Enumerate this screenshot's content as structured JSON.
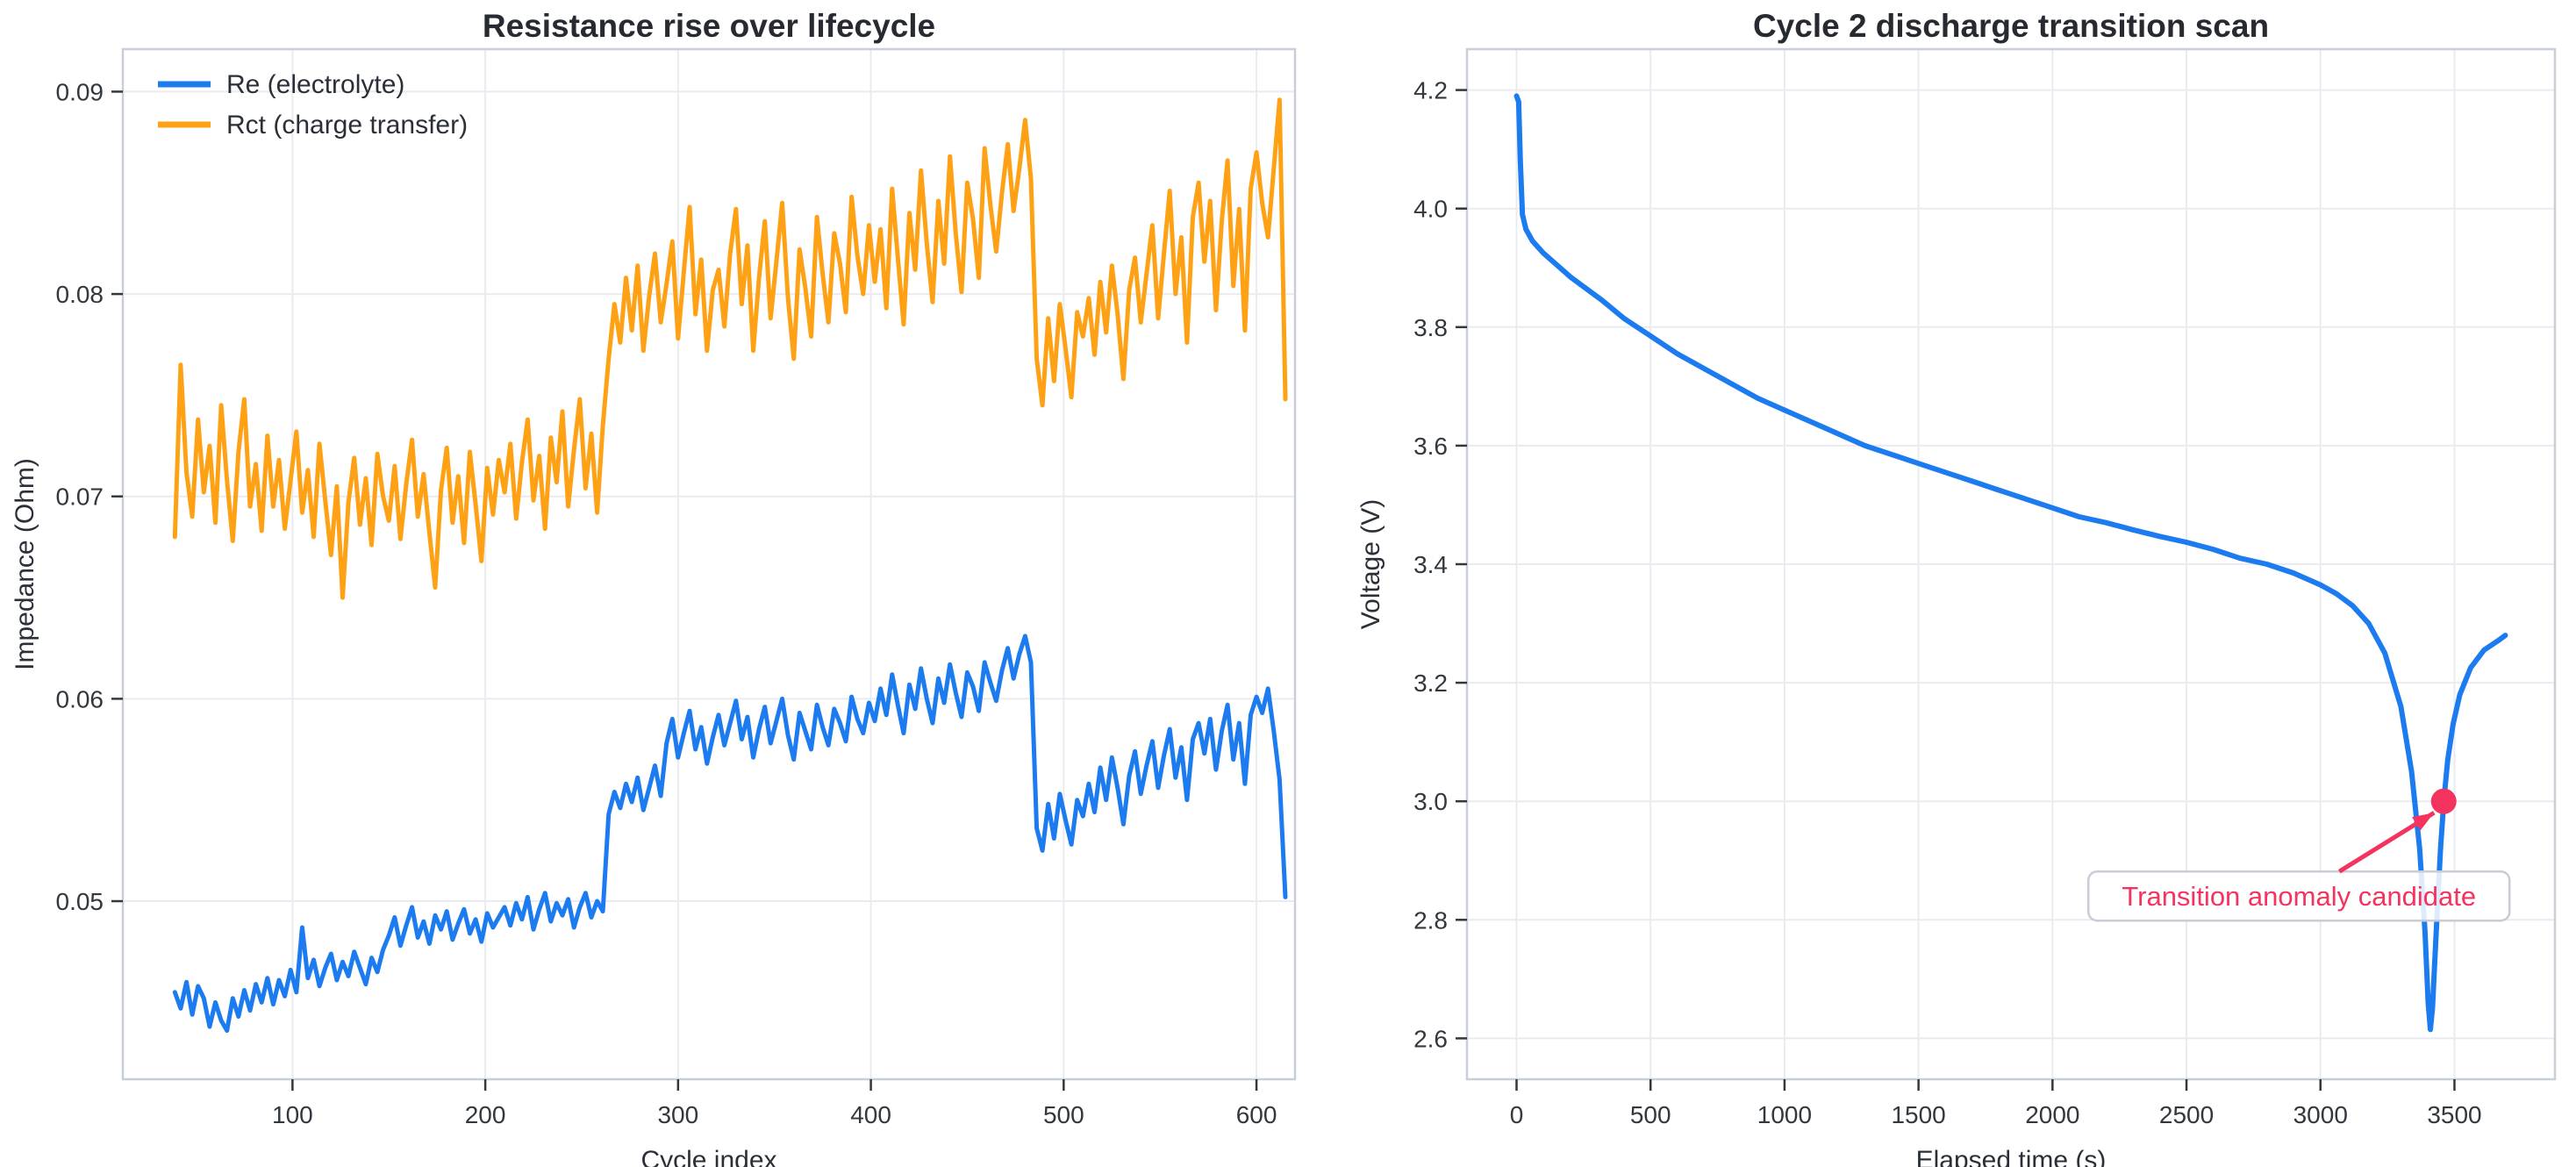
{
  "figure": {
    "background": "#ffffff",
    "title_color": "#272b31",
    "tick_color": "#33383f",
    "grid_color": "#e9ebf0",
    "spine_color": "#c9cfd8"
  },
  "chart_data": [
    {
      "id": "impedance",
      "type": "line",
      "title": "Resistance rise over lifecycle",
      "xlabel": "Cycle index",
      "ylabel": "Impedance (Ohm)",
      "xlim": [
        12,
        620
      ],
      "ylim": [
        0.0412,
        0.0921
      ],
      "xticks": [
        100,
        200,
        300,
        400,
        500,
        600
      ],
      "xtick_labels": [
        "100",
        "200",
        "300",
        "400",
        "500",
        "600"
      ],
      "yticks": [
        0.05,
        0.06,
        0.07,
        0.08,
        0.09
      ],
      "ytick_labels": [
        "0.05",
        "0.06",
        "0.07",
        "0.08",
        "0.09"
      ],
      "grid": true,
      "legend": {
        "position": "upper-left"
      },
      "x": {
        "start": 39,
        "step": 3,
        "count": 193
      },
      "series": [
        {
          "name": "Re (electrolyte)",
          "color": "#1b7bef",
          "width": 5,
          "values": [
            0.0455,
            0.0447,
            0.046,
            0.0444,
            0.0458,
            0.0452,
            0.0438,
            0.045,
            0.0441,
            0.0436,
            0.0452,
            0.0443,
            0.0456,
            0.0446,
            0.0459,
            0.045,
            0.0462,
            0.0449,
            0.0461,
            0.0453,
            0.0466,
            0.0455,
            0.0487,
            0.0462,
            0.0471,
            0.0458,
            0.0467,
            0.0474,
            0.0461,
            0.047,
            0.0463,
            0.0475,
            0.0467,
            0.0459,
            0.0472,
            0.0465,
            0.0476,
            0.0483,
            0.0492,
            0.0478,
            0.0488,
            0.0497,
            0.0482,
            0.049,
            0.0479,
            0.0493,
            0.0486,
            0.0495,
            0.0481,
            0.0489,
            0.0496,
            0.0484,
            0.0491,
            0.048,
            0.0494,
            0.0487,
            0.0492,
            0.0497,
            0.0488,
            0.0499,
            0.0491,
            0.0502,
            0.0486,
            0.0496,
            0.0504,
            0.049,
            0.0499,
            0.0493,
            0.0501,
            0.0487,
            0.0497,
            0.0504,
            0.0492,
            0.05,
            0.0495,
            0.0543,
            0.0554,
            0.0546,
            0.0558,
            0.0549,
            0.0561,
            0.0545,
            0.0556,
            0.0567,
            0.0552,
            0.0578,
            0.059,
            0.0571,
            0.0583,
            0.0594,
            0.0575,
            0.0586,
            0.0568,
            0.0581,
            0.0592,
            0.0577,
            0.0588,
            0.0599,
            0.058,
            0.0591,
            0.0571,
            0.0585,
            0.0596,
            0.0578,
            0.0589,
            0.06,
            0.0582,
            0.057,
            0.0593,
            0.0584,
            0.0575,
            0.0597,
            0.0586,
            0.0577,
            0.0595,
            0.0588,
            0.0579,
            0.0601,
            0.059,
            0.0583,
            0.0598,
            0.0589,
            0.0605,
            0.0592,
            0.0612,
            0.0597,
            0.0583,
            0.0607,
            0.0595,
            0.0615,
            0.06,
            0.0588,
            0.061,
            0.0598,
            0.0617,
            0.0603,
            0.0591,
            0.0613,
            0.0606,
            0.0594,
            0.0618,
            0.0608,
            0.0599,
            0.0614,
            0.0625,
            0.061,
            0.0622,
            0.0631,
            0.0618,
            0.0536,
            0.0525,
            0.0548,
            0.0531,
            0.0553,
            0.054,
            0.0528,
            0.055,
            0.0542,
            0.0558,
            0.0544,
            0.0566,
            0.055,
            0.0571,
            0.0556,
            0.0538,
            0.0562,
            0.0574,
            0.0553,
            0.0567,
            0.0579,
            0.0556,
            0.0572,
            0.0585,
            0.0561,
            0.0576,
            0.055,
            0.058,
            0.0588,
            0.0573,
            0.059,
            0.0565,
            0.0584,
            0.0597,
            0.057,
            0.0588,
            0.0558,
            0.0592,
            0.0601,
            0.0593,
            0.0605,
            0.0584,
            0.056,
            0.0502
          ]
        },
        {
          "name": "Rct (charge transfer)",
          "color": "#ffa115",
          "width": 5,
          "values": [
            0.068,
            0.0765,
            0.0712,
            0.069,
            0.0738,
            0.0702,
            0.0725,
            0.0687,
            0.0745,
            0.0708,
            0.0678,
            0.0722,
            0.0748,
            0.0695,
            0.0716,
            0.0683,
            0.073,
            0.0695,
            0.0718,
            0.0684,
            0.0708,
            0.0732,
            0.0692,
            0.0713,
            0.068,
            0.0726,
            0.0698,
            0.0671,
            0.0705,
            0.065,
            0.0697,
            0.0719,
            0.0686,
            0.0709,
            0.0676,
            0.0721,
            0.07,
            0.0688,
            0.0715,
            0.0679,
            0.0706,
            0.0728,
            0.069,
            0.0711,
            0.0682,
            0.0655,
            0.0703,
            0.0724,
            0.0687,
            0.071,
            0.0677,
            0.0722,
            0.0696,
            0.0668,
            0.0714,
            0.0691,
            0.0718,
            0.0702,
            0.0726,
            0.0689,
            0.0717,
            0.0738,
            0.0698,
            0.072,
            0.0684,
            0.0729,
            0.0707,
            0.0742,
            0.0695,
            0.0723,
            0.0748,
            0.0704,
            0.0731,
            0.0692,
            0.0735,
            0.0768,
            0.0795,
            0.0776,
            0.0808,
            0.0782,
            0.0814,
            0.0772,
            0.0799,
            0.082,
            0.0786,
            0.0805,
            0.0826,
            0.0778,
            0.0811,
            0.0843,
            0.079,
            0.0817,
            0.0772,
            0.0802,
            0.0812,
            0.0784,
            0.082,
            0.0842,
            0.0795,
            0.0824,
            0.0772,
            0.0808,
            0.0836,
            0.0788,
            0.0816,
            0.0845,
            0.0798,
            0.0768,
            0.0822,
            0.0803,
            0.0779,
            0.0838,
            0.081,
            0.0786,
            0.083,
            0.0815,
            0.0791,
            0.0848,
            0.0819,
            0.08,
            0.0834,
            0.0806,
            0.0832,
            0.0793,
            0.0852,
            0.0818,
            0.0785,
            0.084,
            0.0812,
            0.0861,
            0.0825,
            0.0796,
            0.0846,
            0.0815,
            0.0868,
            0.083,
            0.0801,
            0.0855,
            0.0837,
            0.0808,
            0.0872,
            0.0844,
            0.0821,
            0.085,
            0.0874,
            0.0841,
            0.0862,
            0.0886,
            0.0857,
            0.0768,
            0.0745,
            0.0788,
            0.0757,
            0.0795,
            0.0773,
            0.0749,
            0.0791,
            0.0779,
            0.0798,
            0.077,
            0.0806,
            0.0781,
            0.0814,
            0.079,
            0.0758,
            0.0802,
            0.0818,
            0.0786,
            0.081,
            0.0834,
            0.0788,
            0.082,
            0.0851,
            0.08,
            0.0828,
            0.0776,
            0.0838,
            0.0855,
            0.0816,
            0.0846,
            0.0792,
            0.0836,
            0.0866,
            0.0804,
            0.0842,
            0.0782,
            0.0852,
            0.087,
            0.0845,
            0.0828,
            0.0862,
            0.0896,
            0.0748
          ]
        }
      ]
    },
    {
      "id": "discharge",
      "type": "line",
      "title": "Cycle 2 discharge transition scan",
      "xlabel": "Elapsed time (s)",
      "ylabel": "Voltage (V)",
      "xlim": [
        -185,
        3875
      ],
      "ylim": [
        2.531,
        4.269
      ],
      "xticks": [
        0,
        500,
        1000,
        1500,
        2000,
        2500,
        3000,
        3500
      ],
      "xtick_labels": [
        "0",
        "500",
        "1000",
        "1500",
        "2000",
        "2500",
        "3000",
        "3500"
      ],
      "yticks": [
        2.6,
        2.8,
        3.0,
        3.2,
        3.4,
        3.6,
        3.8,
        4.0,
        4.2
      ],
      "ytick_labels": [
        "2.6",
        "2.8",
        "3.0",
        "3.2",
        "3.4",
        "3.6",
        "3.8",
        "4.0",
        "4.2"
      ],
      "grid": true,
      "series": [
        {
          "name": "Voltage",
          "color": "#1b7bef",
          "width": 6,
          "x": [
            0,
            8,
            14,
            22,
            35,
            60,
            100,
            150,
            200,
            260,
            320,
            400,
            500,
            600,
            700,
            800,
            900,
            1000,
            1100,
            1200,
            1300,
            1400,
            1500,
            1600,
            1700,
            1800,
            1900,
            2000,
            2100,
            2200,
            2300,
            2400,
            2500,
            2600,
            2700,
            2800,
            2900,
            3000,
            3060,
            3120,
            3180,
            3240,
            3300,
            3340,
            3370,
            3390,
            3402,
            3410,
            3418,
            3432,
            3448,
            3460,
            3475,
            3495,
            3520,
            3560,
            3610,
            3660,
            3690
          ],
          "values": [
            4.19,
            4.18,
            4.08,
            3.99,
            3.965,
            3.945,
            3.925,
            3.905,
            3.885,
            3.865,
            3.845,
            3.815,
            3.785,
            3.755,
            3.73,
            3.705,
            3.68,
            3.66,
            3.64,
            3.62,
            3.6,
            3.585,
            3.57,
            3.555,
            3.54,
            3.525,
            3.51,
            3.495,
            3.48,
            3.47,
            3.458,
            3.447,
            3.437,
            3.425,
            3.41,
            3.4,
            3.385,
            3.365,
            3.35,
            3.33,
            3.3,
            3.25,
            3.16,
            3.05,
            2.92,
            2.78,
            2.66,
            2.615,
            2.65,
            2.78,
            2.92,
            3.0,
            3.07,
            3.13,
            3.18,
            3.225,
            3.255,
            3.27,
            3.28
          ]
        }
      ],
      "annotation": {
        "text": "Transition anomaly candidate",
        "target": {
          "x": 3460,
          "y": 3.0
        },
        "color": "#f5335f",
        "box_fill": "rgba(255,255,255,0.85)",
        "box_border": "#c8cdd5"
      }
    }
  ]
}
